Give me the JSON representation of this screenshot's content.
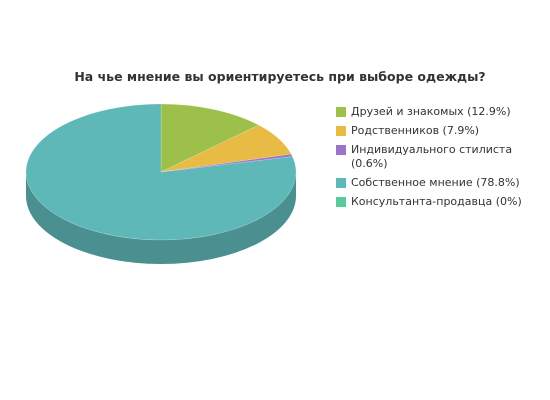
{
  "chart_data": {
    "type": "pie",
    "title": "На чье мнение вы ориентируетесь при выборе одежды?",
    "categories": [
      "Друзей и знакомых (12.9%)",
      "Родственников (7.9%)",
      "Индивидуального стилиста (0.6%)",
      "Собственное мнение (78.8%)",
      "Консультанта-продавца (0%)"
    ],
    "values": [
      12.9,
      7.9,
      0.6,
      78.8,
      0
    ],
    "colors": [
      "#9cc04a",
      "#e8bb45",
      "#9b74c9",
      "#5fb8b8",
      "#5ccb9c"
    ]
  }
}
